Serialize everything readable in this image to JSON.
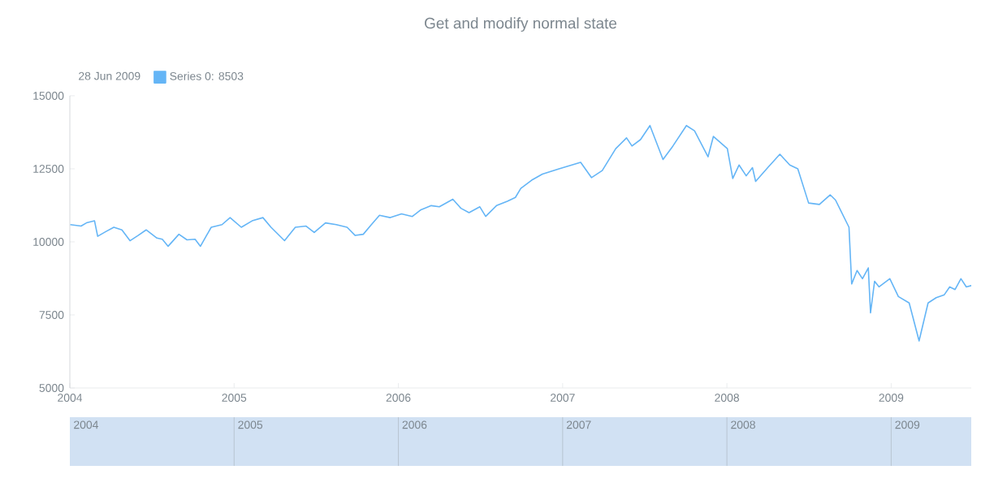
{
  "chart_data": {
    "type": "line",
    "title": "Get and modify normal state",
    "legend_title": "28 Jun 2009",
    "legend": "top left",
    "xlim": [
      "2004-01-01",
      "2009-06-28"
    ],
    "xticks": [
      {
        "value": "2004-01-01",
        "label": "2004"
      },
      {
        "value": "2005-01-01",
        "label": "2005"
      },
      {
        "value": "2006-01-01",
        "label": "2006"
      },
      {
        "value": "2007-01-01",
        "label": "2007"
      },
      {
        "value": "2008-01-01",
        "label": "2008"
      },
      {
        "value": "2009-01-01",
        "label": "2009"
      }
    ],
    "ylim": [
      5000,
      15000
    ],
    "yticks": [
      5000,
      7500,
      10000,
      12500,
      15000
    ],
    "x": [
      "2004-01-02",
      "2004-01-26",
      "2004-02-07",
      "2004-02-25",
      "2004-03-03",
      "2004-03-21",
      "2004-04-08",
      "2004-04-26",
      "2004-05-14",
      "2004-06-01",
      "2004-06-19",
      "2004-07-13",
      "2004-07-25",
      "2004-08-07",
      "2004-08-31",
      "2004-09-18",
      "2004-10-06",
      "2004-10-18",
      "2004-11-11",
      "2004-12-05",
      "2004-12-23",
      "2005-01-17",
      "2005-02-10",
      "2005-03-06",
      "2005-03-24",
      "2005-04-23",
      "2005-05-17",
      "2005-06-10",
      "2005-06-28",
      "2005-07-23",
      "2005-08-16",
      "2005-09-09",
      "2005-09-27",
      "2005-10-15",
      "2005-11-02",
      "2005-11-20",
      "2005-12-14",
      "2006-01-08",
      "2006-02-01",
      "2006-02-19",
      "2006-03-15",
      "2006-04-02",
      "2006-05-02",
      "2006-05-20",
      "2006-06-07",
      "2006-07-01",
      "2006-07-14",
      "2006-08-07",
      "2006-08-31",
      "2006-09-18",
      "2006-09-30",
      "2006-10-24",
      "2006-11-17",
      "2006-12-24",
      "2007-02-10",
      "2007-03-06",
      "2007-03-30",
      "2007-04-29",
      "2007-05-23",
      "2007-06-04",
      "2007-06-23",
      "2007-07-14",
      "2007-08-12",
      "2007-09-03",
      "2007-10-03",
      "2007-10-21",
      "2007-11-20",
      "2007-12-02",
      "2008-01-02",
      "2008-01-14",
      "2008-01-28",
      "2008-02-13",
      "2008-02-27",
      "2008-03-05",
      "2008-04-01",
      "2008-04-28",
      "2008-05-20",
      "2008-06-07",
      "2008-07-01",
      "2008-07-25",
      "2008-08-18",
      "2008-08-30",
      "2008-09-11",
      "2008-09-29",
      "2008-10-05",
      "2008-10-17",
      "2008-10-29",
      "2008-11-11",
      "2008-11-16",
      "2008-11-25",
      "2008-12-05",
      "2008-12-29",
      "2009-01-17",
      "2009-02-10",
      "2009-03-04",
      "2009-03-24",
      "2009-04-11",
      "2009-04-29",
      "2009-05-11",
      "2009-05-23",
      "2009-06-05",
      "2009-06-17",
      "2009-06-28"
    ],
    "series": [
      {
        "name": "Series 0: 8503",
        "color": "#64b5f6",
        "values": [
          10590,
          10540,
          10650,
          10720,
          10190,
          10350,
          10500,
          10410,
          10040,
          10220,
          10410,
          10130,
          10090,
          9850,
          10260,
          10070,
          10090,
          9850,
          10500,
          10590,
          10830,
          10500,
          10720,
          10830,
          10500,
          10040,
          10500,
          10540,
          10320,
          10650,
          10590,
          10500,
          10220,
          10260,
          10590,
          10910,
          10830,
          10960,
          10870,
          11090,
          11240,
          11200,
          11460,
          11150,
          11000,
          11200,
          10870,
          11240,
          11390,
          11520,
          11830,
          12110,
          12320,
          12500,
          12720,
          12200,
          12440,
          13190,
          13560,
          13280,
          13500,
          13980,
          12820,
          13280,
          13980,
          13800,
          12910,
          13610,
          13190,
          12170,
          12630,
          12260,
          12540,
          12070,
          12540,
          13000,
          12630,
          12500,
          11330,
          11280,
          11610,
          11430,
          11060,
          10500,
          8560,
          9020,
          8740,
          9110,
          7570,
          8650,
          8460,
          8740,
          8130,
          7910,
          6610,
          7910,
          8090,
          8190,
          8460,
          8370,
          8740,
          8460,
          8503
        ]
      }
    ]
  }
}
